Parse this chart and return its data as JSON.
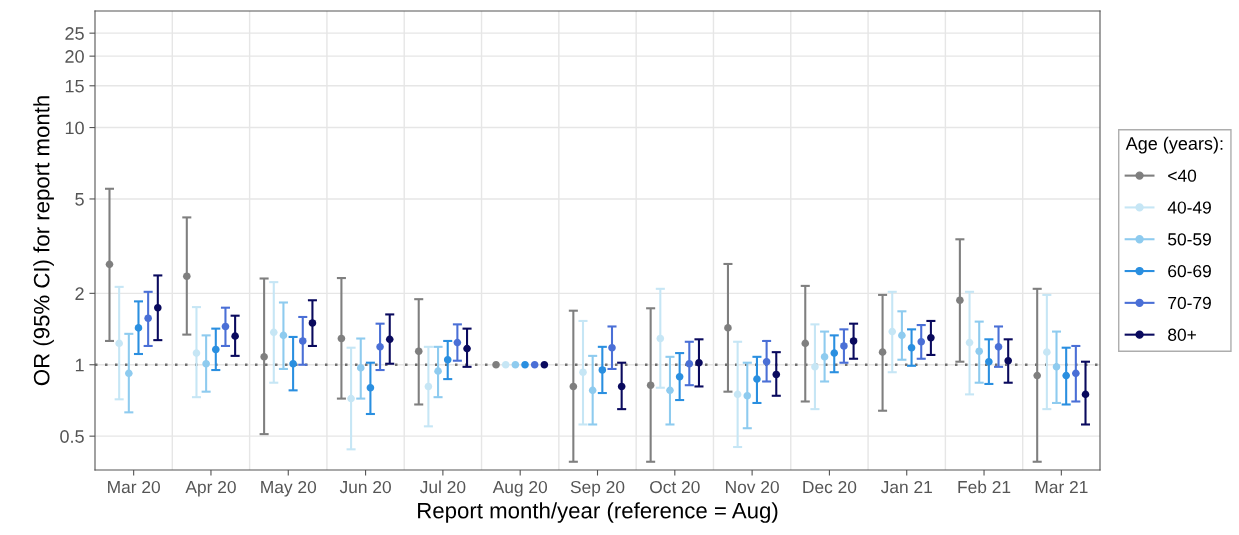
{
  "chart_data": {
    "type": "scatter",
    "xlabel": "Report month/year (reference = Aug)",
    "ylabel": "OR (95% CI) for report month",
    "legend_title": "Age (years):",
    "legend": "right",
    "grid": true,
    "marker": "circle",
    "log": "y",
    "ylim": [
      0.36,
      31
    ],
    "yticks": [
      0.5,
      1,
      2,
      5,
      10,
      15,
      20,
      25
    ],
    "categories": [
      "Mar 20",
      "Apr 20",
      "May 20",
      "Jun 20",
      "Jul 20",
      "Aug 20",
      "Sep 20",
      "Oct 20",
      "Nov 20",
      "Dec 20",
      "Jan 21",
      "Feb 21",
      "Mar 21"
    ],
    "ref_lines": [
      {
        "axis": "y",
        "value": 1,
        "color": "#707070",
        "line_style": "dotted"
      }
    ],
    "series": [
      {
        "name": "<40",
        "color": "#7f7f7f",
        "values": [
          2.65,
          2.36,
          1.08,
          1.29,
          1.14,
          1.0,
          0.81,
          0.82,
          1.43,
          1.23,
          1.13,
          1.87,
          0.9
        ],
        "errors": [
          [
            1.26,
            5.52
          ],
          [
            1.34,
            4.18
          ],
          [
            0.51,
            2.31
          ],
          [
            0.72,
            2.32
          ],
          [
            0.68,
            1.89
          ],
          null,
          [
            0.39,
            1.69
          ],
          [
            0.39,
            1.73
          ],
          [
            0.77,
            2.66
          ],
          [
            0.7,
            2.15
          ],
          [
            0.64,
            1.97
          ],
          [
            1.03,
            3.38
          ],
          [
            0.39,
            2.09
          ]
        ]
      },
      {
        "name": "40-49",
        "color": "#c6e6f5",
        "values": [
          1.23,
          1.12,
          1.37,
          0.72,
          0.81,
          1.0,
          0.93,
          1.29,
          0.75,
          0.98,
          1.38,
          1.24,
          1.13
        ],
        "errors": [
          [
            0.715,
            2.13
          ],
          [
            0.73,
            1.75
          ],
          [
            0.84,
            2.23
          ],
          [
            0.44,
            1.18
          ],
          [
            0.55,
            1.19
          ],
          null,
          [
            0.56,
            1.53
          ],
          [
            0.8,
            2.09
          ],
          [
            0.45,
            1.25
          ],
          [
            0.65,
            1.48
          ],
          [
            0.93,
            2.03
          ],
          [
            0.75,
            2.03
          ],
          [
            0.65,
            1.97
          ]
        ]
      },
      {
        "name": "50-59",
        "color": "#8ecbef",
        "values": [
          0.92,
          1.01,
          1.33,
          0.97,
          0.94,
          1.0,
          0.78,
          0.78,
          0.74,
          1.08,
          1.33,
          1.14,
          0.98
        ],
        "errors": [
          [
            0.63,
            1.35
          ],
          [
            0.77,
            1.33
          ],
          [
            0.96,
            1.83
          ],
          [
            0.72,
            1.29
          ],
          [
            0.73,
            1.19
          ],
          null,
          [
            0.56,
            1.09
          ],
          [
            0.56,
            1.08
          ],
          [
            0.54,
            1.02
          ],
          [
            0.85,
            1.38
          ],
          [
            1.05,
            1.68
          ],
          [
            0.84,
            1.52
          ],
          [
            0.69,
            1.38
          ]
        ]
      },
      {
        "name": "60-69",
        "color": "#2a8fe0",
        "values": [
          1.43,
          1.16,
          1.01,
          0.8,
          1.05,
          1.0,
          0.95,
          0.89,
          0.87,
          1.12,
          1.18,
          1.03,
          0.9
        ],
        "errors": [
          [
            1.11,
            1.85
          ],
          [
            0.95,
            1.42
          ],
          [
            0.78,
            1.31
          ],
          [
            0.62,
            1.02
          ],
          [
            0.87,
            1.26
          ],
          null,
          [
            0.76,
            1.19
          ],
          [
            0.71,
            1.12
          ],
          [
            0.69,
            1.08
          ],
          [
            0.93,
            1.33
          ],
          [
            0.99,
            1.41
          ],
          [
            0.83,
            1.28
          ],
          [
            0.68,
            1.18
          ]
        ]
      },
      {
        "name": "70-79",
        "color": "#4a6fd6",
        "values": [
          1.57,
          1.45,
          1.26,
          1.19,
          1.24,
          1.0,
          1.18,
          1.01,
          1.03,
          1.2,
          1.25,
          1.19,
          0.92
        ],
        "errors": [
          [
            1.2,
            2.03
          ],
          [
            1.2,
            1.74
          ],
          [
            1.0,
            1.59
          ],
          [
            0.95,
            1.49
          ],
          [
            1.04,
            1.48
          ],
          null,
          [
            0.96,
            1.45
          ],
          [
            0.82,
            1.25
          ],
          [
            0.85,
            1.26
          ],
          [
            1.02,
            1.41
          ],
          [
            1.06,
            1.47
          ],
          [
            0.98,
            1.45
          ],
          [
            0.7,
            1.2
          ]
        ]
      },
      {
        "name": "80+",
        "color": "#0a0a5e",
        "values": [
          1.74,
          1.32,
          1.5,
          1.28,
          1.17,
          1.0,
          0.81,
          1.02,
          0.91,
          1.26,
          1.3,
          1.04,
          0.75
        ],
        "errors": [
          [
            1.27,
            2.38
          ],
          [
            1.09,
            1.61
          ],
          [
            1.2,
            1.87
          ],
          [
            1.01,
            1.63
          ],
          [
            0.98,
            1.42
          ],
          null,
          [
            0.65,
            1.02
          ],
          [
            0.81,
            1.28
          ],
          [
            0.74,
            1.13
          ],
          [
            1.06,
            1.49
          ],
          [
            1.1,
            1.53
          ],
          [
            0.84,
            1.28
          ],
          [
            0.56,
            1.03
          ]
        ]
      }
    ]
  }
}
